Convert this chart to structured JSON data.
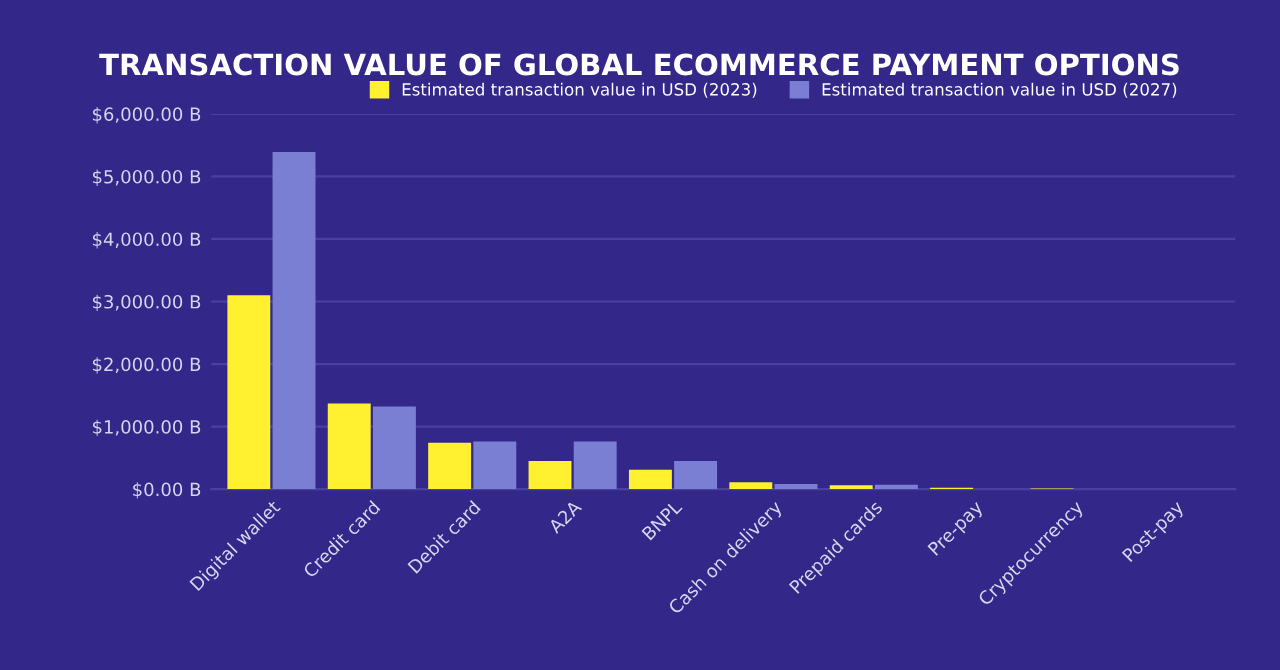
{
  "chart_data": {
    "type": "bar",
    "title": "TRANSACTION VALUE OF GLOBAL ECOMMERCE PAYMENT OPTIONS",
    "categories": [
      "Digital wallet",
      "Credit card",
      "Debit card",
      "A2A",
      "BNPL",
      "Cash on delivery",
      "Prepaid cards",
      "Pre-pay",
      "Cryptocurrency",
      "Post-pay"
    ],
    "series": [
      {
        "name": "Estimated transaction value in USD (2023)",
        "color": "#fff12f",
        "values": [
          3100,
          1370,
          740,
          450,
          310,
          110,
          60,
          20,
          10,
          0
        ]
      },
      {
        "name": "Estimated transaction value in USD (2027)",
        "color": "#7b7fd4",
        "values": [
          5390,
          1320,
          760,
          760,
          450,
          80,
          70,
          null,
          null,
          null
        ]
      }
    ],
    "ylim": [
      0,
      6000
    ],
    "yticks": [
      {
        "value": 0,
        "label": "$0.00 B"
      },
      {
        "value": 1000,
        "label": "$1,000.00 B"
      },
      {
        "value": 2000,
        "label": "$2,000.00 B"
      },
      {
        "value": 3000,
        "label": "$3,000.00 B"
      },
      {
        "value": 4000,
        "label": "$4,000.00 B"
      },
      {
        "value": 5000,
        "label": "$5,000.00 B"
      },
      {
        "value": 6000,
        "label": "$6,000.00 B"
      }
    ],
    "grid": "y",
    "legend": "top"
  }
}
